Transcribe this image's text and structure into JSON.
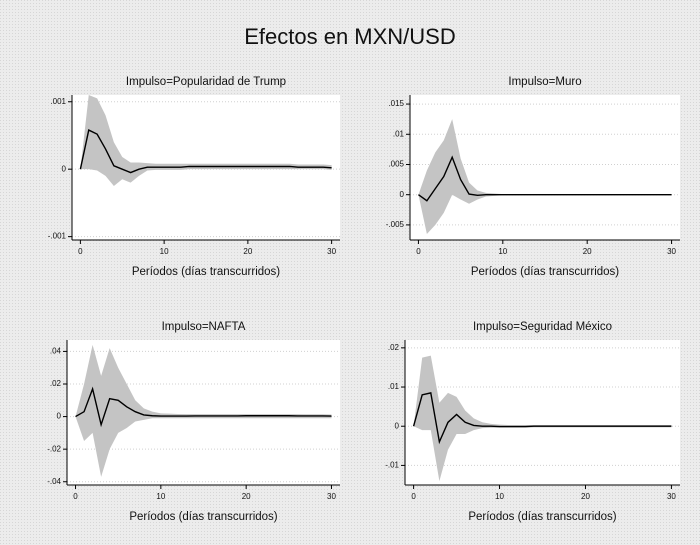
{
  "title": "Efectos en MXN/USD",
  "chart_data": [
    {
      "type": "line",
      "title": "Impulso=Popularidad de Trump",
      "xlabel": "Períodos (días transcurridos)",
      "x": [
        0,
        1,
        2,
        3,
        4,
        5,
        6,
        7,
        8,
        9,
        10,
        11,
        12,
        13,
        14,
        15,
        16,
        17,
        18,
        19,
        20,
        21,
        22,
        23,
        24,
        25,
        26,
        27,
        28,
        29,
        30
      ],
      "values": [
        0,
        0.00058,
        0.00052,
        0.0003,
        5e-05,
        0,
        -5e-05,
        0,
        3e-05,
        3e-05,
        3e-05,
        3e-05,
        3e-05,
        4e-05,
        4e-05,
        4e-05,
        4e-05,
        4e-05,
        4e-05,
        4e-05,
        4e-05,
        4e-05,
        4e-05,
        4e-05,
        4e-05,
        4e-05,
        3e-05,
        3e-05,
        3e-05,
        3e-05,
        2e-05
      ],
      "upper": [
        0,
        0.0011,
        0.00105,
        0.0008,
        0.0004,
        0.00018,
        0.0001,
        0.0001,
        9e-05,
        8e-05,
        8e-05,
        8e-05,
        8e-05,
        8e-05,
        8e-05,
        8e-05,
        8e-05,
        8e-05,
        8e-05,
        8e-05,
        8e-05,
        8e-05,
        8e-05,
        8e-05,
        8e-05,
        8e-05,
        7e-05,
        7e-05,
        7e-05,
        7e-05,
        6e-05
      ],
      "lower": [
        0,
        0,
        -2e-05,
        -0.0001,
        -0.00025,
        -0.00015,
        -0.0002,
        -0.0001,
        -2e-05,
        -1e-05,
        -1e-05,
        -1e-05,
        -1e-05,
        0,
        0,
        0,
        0,
        0,
        0,
        0,
        0,
        0,
        0,
        0,
        0,
        0,
        0,
        0,
        0,
        0,
        -1e-05
      ],
      "color": "#000000",
      "band_color": "#c4c4c4",
      "xlim": [
        -1,
        31
      ],
      "xticks": [
        0,
        10,
        20,
        30
      ],
      "ylim": [
        -0.00105,
        0.0011
      ],
      "yticks": [
        {
          "value": -0.001,
          "label": "-.001"
        },
        0,
        {
          "value": 0.001,
          "label": ".001"
        }
      ],
      "grid": true
    },
    {
      "type": "line",
      "title": "Impulso=Muro",
      "xlabel": "Períodos (días transcurridos)",
      "x": [
        0,
        1,
        2,
        3,
        4,
        5,
        6,
        7,
        8,
        9,
        10,
        11,
        12,
        13,
        14,
        15,
        16,
        17,
        18,
        19,
        20,
        21,
        22,
        23,
        24,
        25,
        26,
        27,
        28,
        29,
        30
      ],
      "values": [
        0,
        -0.001,
        0.001,
        0.003,
        0.0062,
        0.0025,
        0.0001,
        -0.0001,
        0,
        0,
        0,
        0,
        0,
        0,
        0,
        0,
        0,
        0,
        0,
        0,
        0,
        0,
        0,
        0,
        0,
        0,
        0,
        0,
        0,
        0,
        0
      ],
      "upper": [
        0,
        0.004,
        0.007,
        0.009,
        0.0125,
        0.006,
        0.002,
        0.0007,
        0.0003,
        0.0002,
        0.0001,
        0.0001,
        0.0001,
        0.0001,
        0.0001,
        0.0001,
        0.0001,
        0.0001,
        0.0001,
        0.0001,
        0.0001,
        0.0001,
        0.0001,
        0.0001,
        0.0001,
        0.0001,
        0.0001,
        0.0001,
        0.0001,
        0.0001,
        0.0001
      ],
      "lower": [
        0,
        -0.0065,
        -0.005,
        -0.003,
        0,
        -0.0008,
        -0.0015,
        -0.0008,
        -0.0003,
        -0.0002,
        -0.0001,
        -0.0001,
        -0.0001,
        -0.0001,
        -0.0001,
        -0.0001,
        -0.0001,
        -0.0001,
        -0.0001,
        -0.0001,
        -0.0001,
        -0.0001,
        -0.0001,
        -0.0001,
        -0.0001,
        -0.0001,
        -0.0001,
        -0.0001,
        -0.0001,
        -0.0001,
        -0.0001
      ],
      "color": "#000000",
      "band_color": "#c4c4c4",
      "xlim": [
        -1,
        31
      ],
      "xticks": [
        0,
        10,
        20,
        30
      ],
      "ylim": [
        -0.0075,
        0.0165
      ],
      "yticks": [
        {
          "value": -0.005,
          "label": "-.005"
        },
        0,
        {
          "value": 0.005,
          "label": ".005"
        },
        {
          "value": 0.01,
          "label": ".01"
        },
        {
          "value": 0.015,
          "label": ".015"
        }
      ],
      "grid": true
    },
    {
      "type": "line",
      "title": "Impulso=NAFTA",
      "xlabel": "Períodos (días transcurridos)",
      "x": [
        0,
        1,
        2,
        3,
        4,
        5,
        6,
        7,
        8,
        9,
        10,
        11,
        12,
        13,
        14,
        15,
        16,
        17,
        18,
        19,
        20,
        21,
        22,
        23,
        24,
        25,
        26,
        27,
        28,
        29,
        30
      ],
      "values": [
        0,
        0.003,
        0.017,
        -0.005,
        0.011,
        0.01,
        0.006,
        0.003,
        0.001,
        0.0005,
        0.0003,
        0.0003,
        0.0003,
        0.0003,
        0.0004,
        0.0004,
        0.0004,
        0.0004,
        0.0004,
        0.0004,
        0.0005,
        0.0005,
        0.0005,
        0.0005,
        0.0005,
        0.0005,
        0.0004,
        0.0004,
        0.0004,
        0.0004,
        0.0003
      ],
      "upper": [
        0,
        0.02,
        0.044,
        0.025,
        0.042,
        0.03,
        0.02,
        0.01,
        0.005,
        0.003,
        0.002,
        0.0018,
        0.0016,
        0.0015,
        0.0015,
        0.0015,
        0.0015,
        0.0015,
        0.0015,
        0.0015,
        0.0015,
        0.0015,
        0.0015,
        0.0015,
        0.0015,
        0.0015,
        0.0015,
        0.0014,
        0.0014,
        0.0014,
        0.0013
      ],
      "lower": [
        0,
        -0.015,
        -0.01,
        -0.037,
        -0.02,
        -0.01,
        -0.007,
        -0.003,
        -0.002,
        -0.001,
        -0.001,
        -0.001,
        -0.001,
        -0.001,
        -0.001,
        -0.001,
        -0.001,
        -0.001,
        -0.001,
        -0.001,
        -0.001,
        -0.001,
        -0.001,
        -0.001,
        -0.001,
        -0.001,
        -0.001,
        -0.001,
        -0.001,
        -0.001,
        -0.001
      ],
      "color": "#000000",
      "band_color": "#c4c4c4",
      "xlim": [
        -1,
        31
      ],
      "xticks": [
        0,
        10,
        20,
        30
      ],
      "ylim": [
        -0.042,
        0.047
      ],
      "yticks": [
        {
          "value": -0.04,
          "label": "-.04"
        },
        {
          "value": -0.02,
          "label": "-.02"
        },
        0,
        {
          "value": 0.02,
          "label": ".02"
        },
        {
          "value": 0.04,
          "label": ".04"
        }
      ],
      "grid": true
    },
    {
      "type": "line",
      "title": "Impulso=Seguridad México",
      "xlabel": "Períodos (días transcurridos)",
      "x": [
        0,
        1,
        2,
        3,
        4,
        5,
        6,
        7,
        8,
        9,
        10,
        11,
        12,
        13,
        14,
        15,
        16,
        17,
        18,
        19,
        20,
        21,
        22,
        23,
        24,
        25,
        26,
        27,
        28,
        29,
        30
      ],
      "values": [
        0,
        0.008,
        0.0085,
        -0.004,
        0.001,
        0.003,
        0.001,
        0.0002,
        0,
        0,
        -0.0001,
        -0.0001,
        -0.0001,
        -0.0001,
        0,
        0,
        0,
        0,
        0,
        0,
        0,
        0,
        0,
        0,
        0,
        0,
        0,
        0,
        0,
        0,
        0
      ],
      "upper": [
        0,
        0.0175,
        0.018,
        0.006,
        0.0085,
        0.0075,
        0.004,
        0.002,
        0.001,
        0.0006,
        0.0004,
        0.0003,
        0.0003,
        0.0003,
        0.0003,
        0.0003,
        0.0003,
        0.0003,
        0.0003,
        0.0003,
        0.0003,
        0.0003,
        0.0003,
        0.0003,
        0.0003,
        0.0003,
        0.0003,
        0.0003,
        0.0003,
        0.0003,
        0.0003
      ],
      "lower": [
        0,
        -0.001,
        -0.001,
        -0.014,
        -0.006,
        -0.002,
        -0.002,
        -0.001,
        -0.0005,
        -0.0004,
        -0.0004,
        -0.0004,
        -0.0004,
        -0.0004,
        -0.0003,
        -0.0003,
        -0.0003,
        -0.0003,
        -0.0003,
        -0.0003,
        -0.0003,
        -0.0003,
        -0.0003,
        -0.0003,
        -0.0003,
        -0.0003,
        -0.0003,
        -0.0003,
        -0.0003,
        -0.0003,
        -0.0003
      ],
      "color": "#000000",
      "band_color": "#c4c4c4",
      "xlim": [
        -1,
        31
      ],
      "xticks": [
        0,
        10,
        20,
        30
      ],
      "ylim": [
        -0.015,
        0.022
      ],
      "yticks": [
        {
          "value": -0.01,
          "label": "-.01"
        },
        0,
        {
          "value": 0.01,
          "label": ".01"
        },
        {
          "value": 0.02,
          "label": ".02"
        }
      ],
      "grid": true
    }
  ]
}
